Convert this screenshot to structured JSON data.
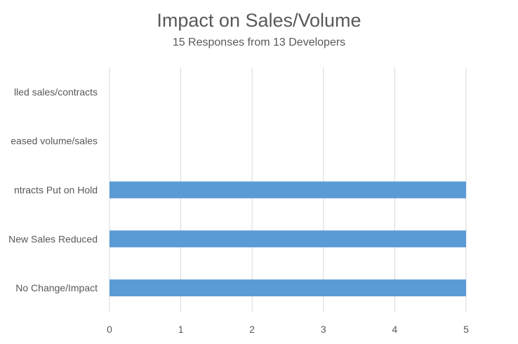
{
  "chart_data": {
    "type": "bar",
    "orientation": "horizontal",
    "title": "Impact on Sales/Volume",
    "subtitle": "15 Responses from 13 Developers",
    "categories": [
      "lled sales/contracts",
      "eased volume/sales",
      "ntracts Put on Hold",
      "New Sales Reduced",
      "No Change/Impact"
    ],
    "values": [
      0,
      0,
      5,
      5,
      5
    ],
    "xlim": [
      0,
      5
    ],
    "xticks": [
      "0",
      "1",
      "2",
      "3",
      "4",
      "5"
    ],
    "grid": true,
    "bar_color": "#5b9bd5",
    "xlabel": "",
    "ylabel": ""
  }
}
